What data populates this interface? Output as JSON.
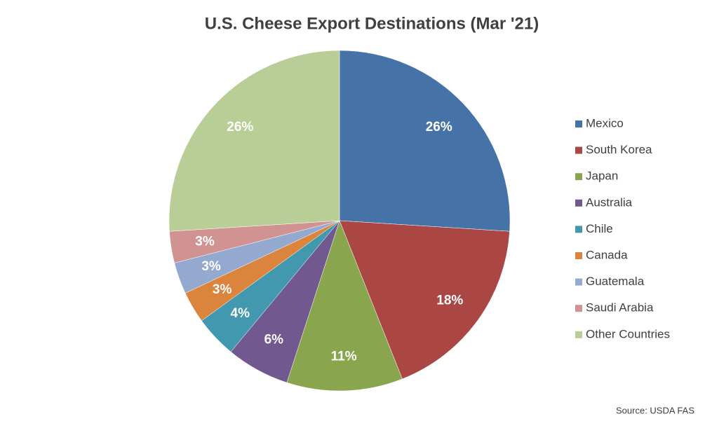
{
  "chart_data": {
    "type": "pie",
    "title": "U.S. Cheese Export Destinations (Mar '21)",
    "categories": [
      "Mexico",
      "South Korea",
      "Japan",
      "Australia",
      "Chile",
      "Canada",
      "Guatemala",
      "Saudi Arabia",
      "Other Countries"
    ],
    "values": [
      26,
      18,
      11,
      6,
      4,
      3,
      3,
      3,
      26
    ],
    "value_labels": [
      "26%",
      "18%",
      "11%",
      "6%",
      "4%",
      "3%",
      "3%",
      "3%",
      "26%"
    ],
    "colors": [
      "#4572A7",
      "#AA4643",
      "#89A54E",
      "#71588F",
      "#4198AF",
      "#DB843D",
      "#93A9CF",
      "#D19392",
      "#B9CD96"
    ],
    "legend": "right",
    "source": "Source: USDA FAS"
  }
}
